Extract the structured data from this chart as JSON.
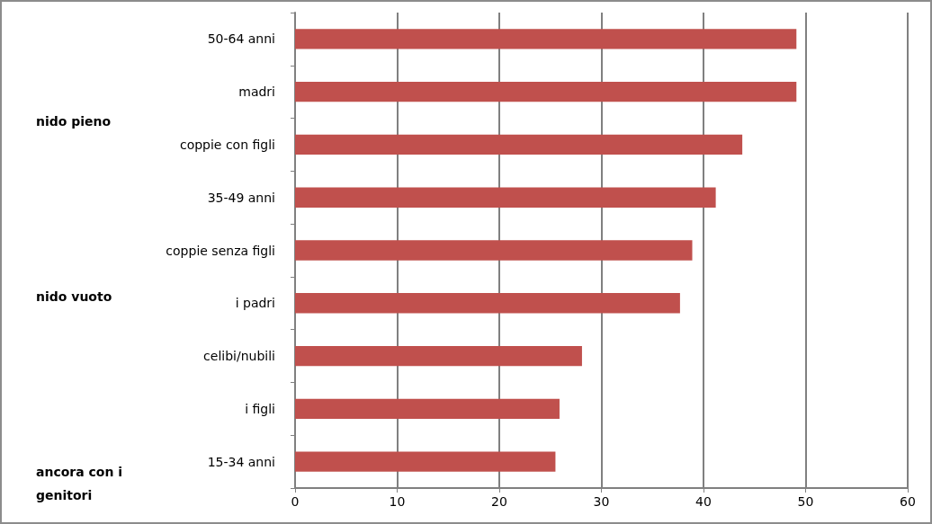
{
  "chart_data": {
    "type": "bar",
    "orientation": "horizontal",
    "categories": [
      "50-64 anni",
      "madri",
      "coppie con figli",
      "35-49 anni",
      "coppie senza figli",
      "i padri",
      "celibi/nubili",
      "i figli",
      "15-34 anni"
    ],
    "values": [
      49.1,
      49.1,
      43.8,
      41.2,
      38.9,
      37.7,
      28.1,
      25.9,
      25.5
    ],
    "color": "#c0504d",
    "xlim": [
      0,
      60
    ],
    "xticks": [
      0,
      10,
      20,
      30,
      40,
      50,
      60
    ],
    "grid": "x",
    "annotations": [
      "nido pieno",
      "nido vuoto",
      "ancora con i genitori"
    ]
  }
}
